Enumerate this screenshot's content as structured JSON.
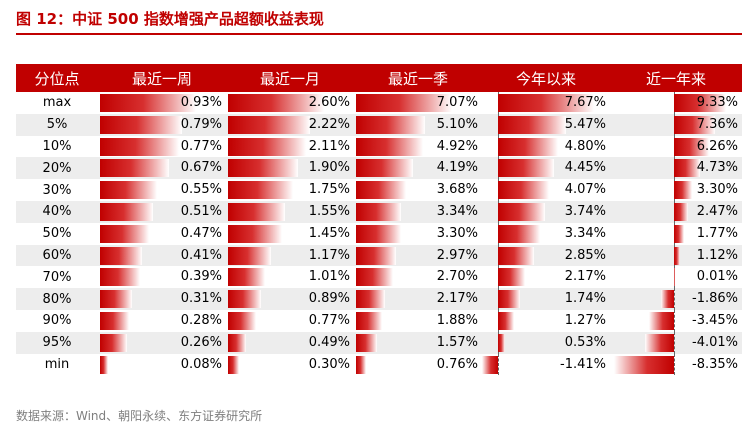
{
  "title": "图 12：中证 500 指数增强产品超额收益表现",
  "source": "数据来源：Wind、朝阳永续、东方证券研究所",
  "table": {
    "columns": [
      "分位点",
      "最近一周",
      "最近一月",
      "最近一季",
      "今年以来",
      "近一年来"
    ],
    "rows": [
      {
        "label": "max",
        "values": [
          0.93,
          2.6,
          7.07,
          7.67,
          9.33
        ],
        "text": [
          "0.93%",
          "2.60%",
          "7.07%",
          "7.67%",
          "9.33%"
        ]
      },
      {
        "label": "5%",
        "values": [
          0.79,
          2.22,
          5.1,
          5.47,
          7.36
        ],
        "text": [
          "0.79%",
          "2.22%",
          "5.10%",
          "5.47%",
          "7.36%"
        ]
      },
      {
        "label": "10%",
        "values": [
          0.77,
          2.11,
          4.92,
          4.8,
          6.26
        ],
        "text": [
          "0.77%",
          "2.11%",
          "4.92%",
          "4.80%",
          "6.26%"
        ]
      },
      {
        "label": "20%",
        "values": [
          0.67,
          1.9,
          4.19,
          4.45,
          4.73
        ],
        "text": [
          "0.67%",
          "1.90%",
          "4.19%",
          "4.45%",
          "4.73%"
        ]
      },
      {
        "label": "30%",
        "values": [
          0.55,
          1.75,
          3.68,
          4.07,
          3.3
        ],
        "text": [
          "0.55%",
          "1.75%",
          "3.68%",
          "4.07%",
          "3.30%"
        ]
      },
      {
        "label": "40%",
        "values": [
          0.51,
          1.55,
          3.34,
          3.74,
          2.47
        ],
        "text": [
          "0.51%",
          "1.55%",
          "3.34%",
          "3.74%",
          "2.47%"
        ]
      },
      {
        "label": "50%",
        "values": [
          0.47,
          1.45,
          3.3,
          3.34,
          1.77
        ],
        "text": [
          "0.47%",
          "1.45%",
          "3.30%",
          "3.34%",
          "1.77%"
        ]
      },
      {
        "label": "60%",
        "values": [
          0.41,
          1.17,
          2.97,
          2.85,
          1.12
        ],
        "text": [
          "0.41%",
          "1.17%",
          "2.97%",
          "2.85%",
          "1.12%"
        ]
      },
      {
        "label": "70%",
        "values": [
          0.39,
          1.01,
          2.7,
          2.17,
          0.01
        ],
        "text": [
          "0.39%",
          "1.01%",
          "2.70%",
          "2.17%",
          "0.01%"
        ]
      },
      {
        "label": "80%",
        "values": [
          0.31,
          0.89,
          2.17,
          1.74,
          -1.86
        ],
        "text": [
          "0.31%",
          "0.89%",
          "2.17%",
          "1.74%",
          "-1.86%"
        ]
      },
      {
        "label": "90%",
        "values": [
          0.28,
          0.77,
          1.88,
          1.27,
          -3.45
        ],
        "text": [
          "0.28%",
          "0.77%",
          "1.88%",
          "1.27%",
          "-3.45%"
        ]
      },
      {
        "label": "95%",
        "values": [
          0.26,
          0.49,
          1.57,
          0.53,
          -4.01
        ],
        "text": [
          "0.26%",
          "0.49%",
          "1.57%",
          "0.53%",
          "-4.01%"
        ]
      },
      {
        "label": "min",
        "values": [
          0.08,
          0.3,
          0.76,
          -1.41,
          -8.35
        ],
        "text": [
          "0.08%",
          "0.30%",
          "0.76%",
          "-1.41%",
          "-8.35%"
        ]
      }
    ],
    "colors": {
      "header_bg": "#c00000",
      "bar": "#c00000",
      "alt_row": "#ededed"
    }
  }
}
